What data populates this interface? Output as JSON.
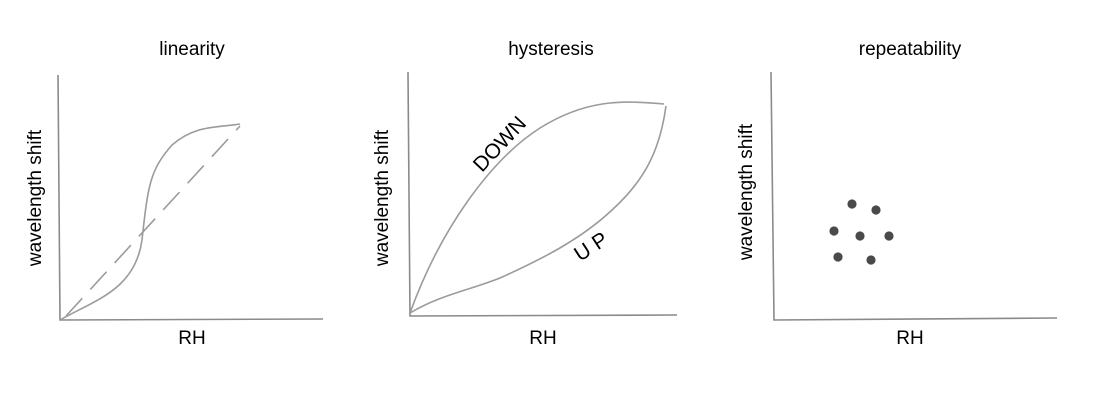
{
  "panels": [
    {
      "title": "linearity",
      "xlabel": "RH",
      "ylabel": "wavelength shift"
    },
    {
      "title": "hysteresis",
      "xlabel": "RH",
      "ylabel": "wavelength shift",
      "curve_labels": {
        "down": "DOWN",
        "up": "UP"
      }
    },
    {
      "title": "repeatability",
      "xlabel": "RH",
      "ylabel": "wavelength shift"
    }
  ],
  "colors": {
    "axis": "#8a8a8a",
    "curve": "#9b9b9b",
    "dot": "#4a4a4a",
    "text": "#000000"
  }
}
